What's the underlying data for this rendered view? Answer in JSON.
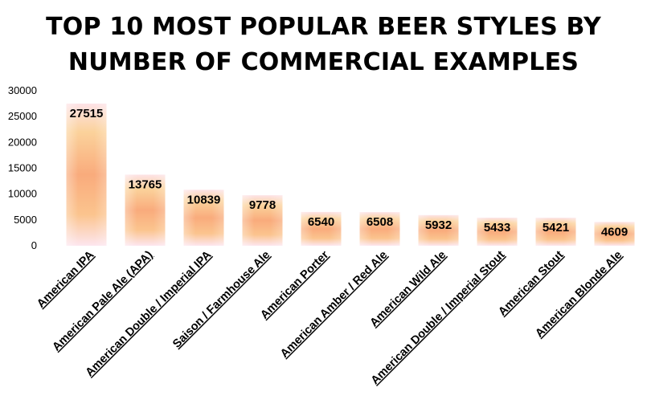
{
  "chart_data": {
    "type": "bar",
    "title_lines": [
      "TOP 10 MOST POPULAR BEER STYLES BY",
      "NUMBER OF COMMERCIAL EXAMPLES"
    ],
    "categories": [
      "American IPA",
      "American Pale Ale (APA)",
      "American Double / Imperial IPA",
      "Saison / Farmhouse Ale",
      "American Porter",
      "American Amber / Red Ale",
      "American Wild Ale",
      "American Double / Imperial Stout",
      "American Stout",
      "American Blonde Ale"
    ],
    "values": [
      27515,
      13765,
      10839,
      9778,
      6540,
      6508,
      5932,
      5433,
      5421,
      4609
    ],
    "data_labels": [
      "27515",
      "13765",
      "10839",
      "9778",
      "6540",
      "6508",
      "5932",
      "5433",
      "5421",
      "4609"
    ],
    "y_ticks": [
      "0",
      "5000",
      "10000",
      "15000",
      "20000",
      "25000",
      "30000"
    ],
    "ylim": [
      0,
      30000
    ],
    "grid": false,
    "legend": "none",
    "colors": {
      "bar_top": "#fde3e7",
      "bar_mid_light": "#fbd29b",
      "bar_core": "#f9ab7c",
      "bar_bottom": "#fde6ef",
      "text": "#000000"
    }
  }
}
